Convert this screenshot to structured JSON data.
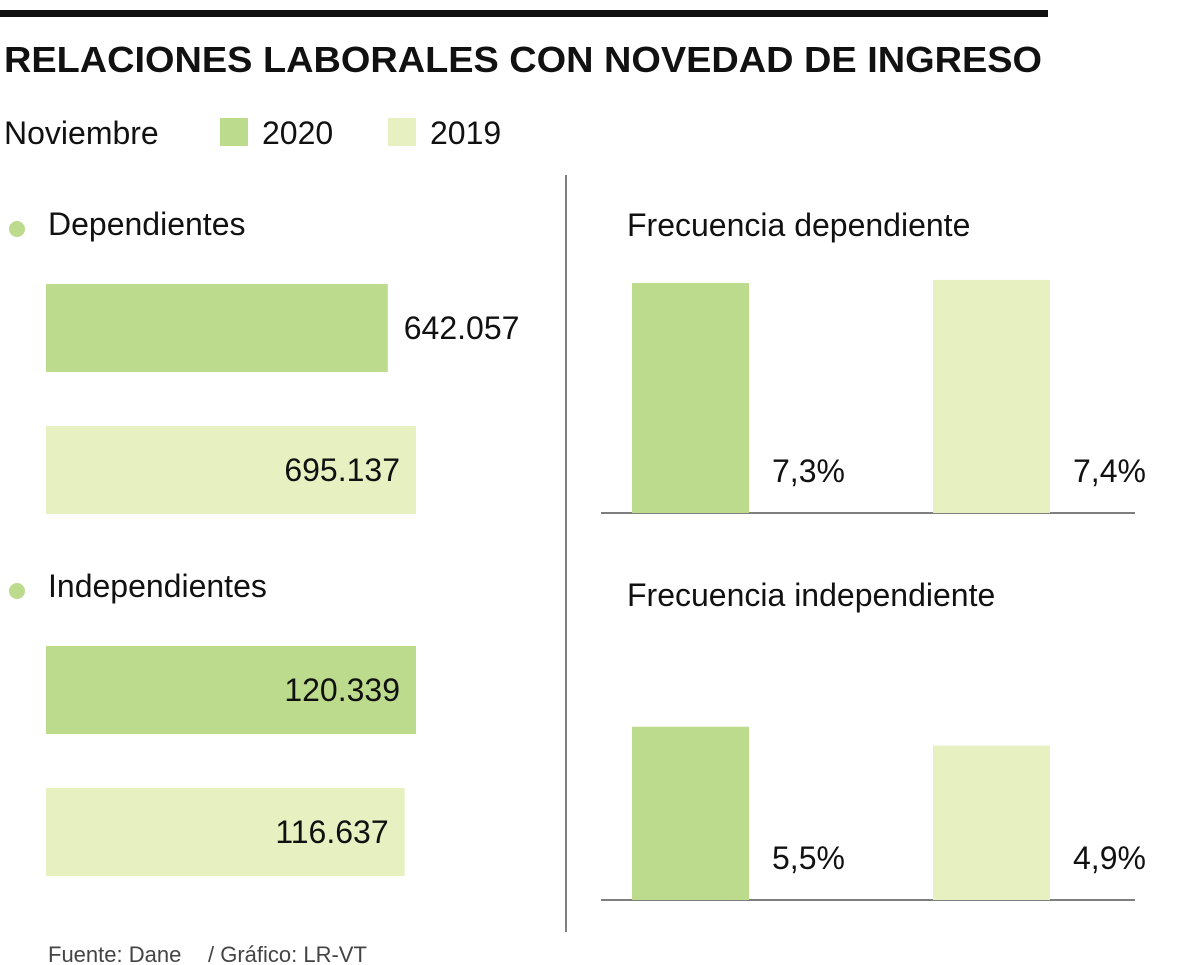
{
  "title": "RELACIONES LABORALES CON NOVEDAD DE INGRESO",
  "legend": {
    "title": "Noviembre",
    "items": [
      {
        "name": "2020",
        "color": "#bcdb8c"
      },
      {
        "name": "2019",
        "color": "#e6f0c1"
      }
    ]
  },
  "source": "Fuente: Dane",
  "credit": "/ Gráfico: LR-VT",
  "chart_data": [
    {
      "type": "hbar",
      "title": "Dependientes",
      "values": [
        642057,
        695137
      ],
      "value_labels": [
        "642.057",
        "695.137"
      ]
    },
    {
      "type": "hbar",
      "title": "Independientes",
      "values": [
        120339,
        116637
      ],
      "value_labels": [
        "120.339",
        "116.637"
      ]
    },
    {
      "type": "vbar",
      "title": "Frecuencia dependiente",
      "values": [
        7.3,
        7.4
      ],
      "value_labels": [
        "7,3%",
        "7,4%"
      ]
    },
    {
      "type": "vbar",
      "title": "Frecuencia independiente",
      "values": [
        5.5,
        4.9
      ],
      "value_labels": [
        "5,5%",
        "4,9%"
      ]
    }
  ]
}
